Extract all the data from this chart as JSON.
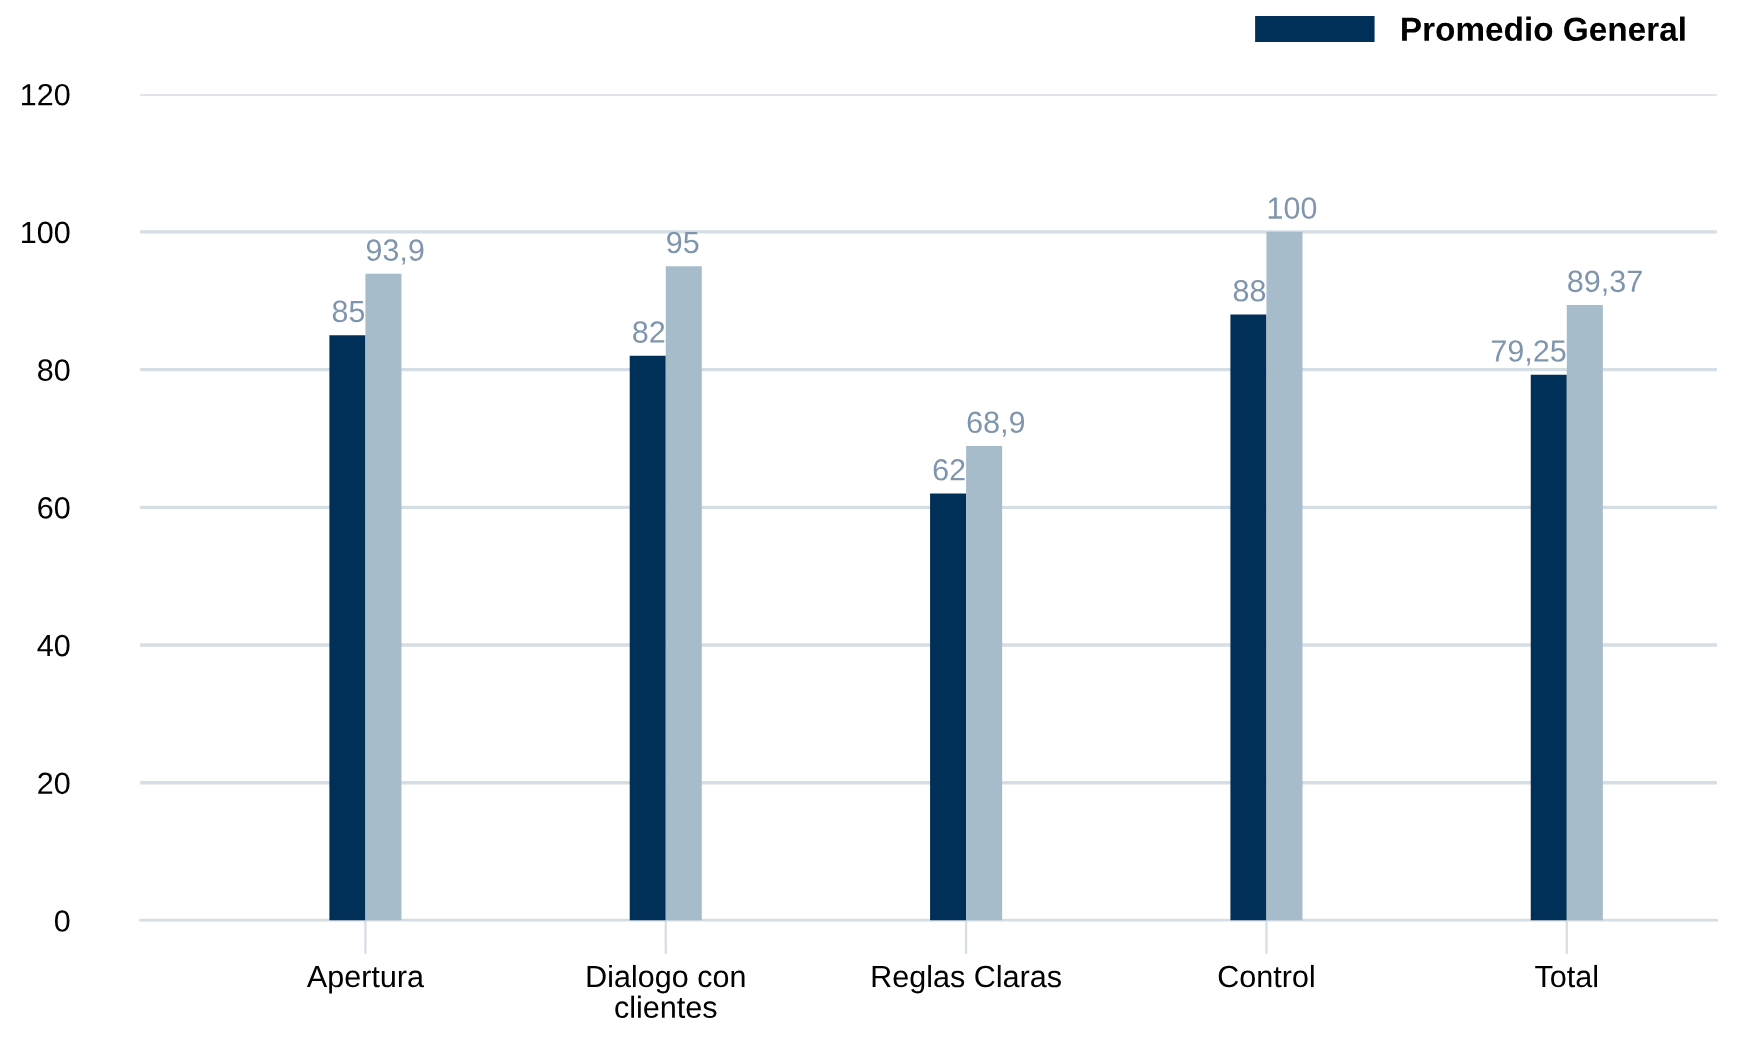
{
  "chart_data": {
    "type": "bar",
    "categories": [
      "Apertura",
      "Dialogo con\nclientes",
      "Reglas Claras",
      "Control",
      "Total"
    ],
    "series": [
      {
        "name": "Promedio General",
        "color": "#003057",
        "values": [
          85,
          82,
          62,
          88,
          79.25
        ],
        "value_labels": [
          "85",
          "82",
          "62",
          "88",
          "79,25"
        ]
      },
      {
        "color": "#a7bccb",
        "values": [
          93.9,
          95,
          68.9,
          100,
          89.37
        ],
        "value_labels": [
          "93,9",
          "95",
          "68,9",
          "100",
          "89,37"
        ]
      }
    ],
    "ylim": [
      0,
      120
    ],
    "yticks": [
      0,
      20,
      40,
      60,
      80,
      100,
      120
    ],
    "grid": "y",
    "legend": "top right"
  }
}
